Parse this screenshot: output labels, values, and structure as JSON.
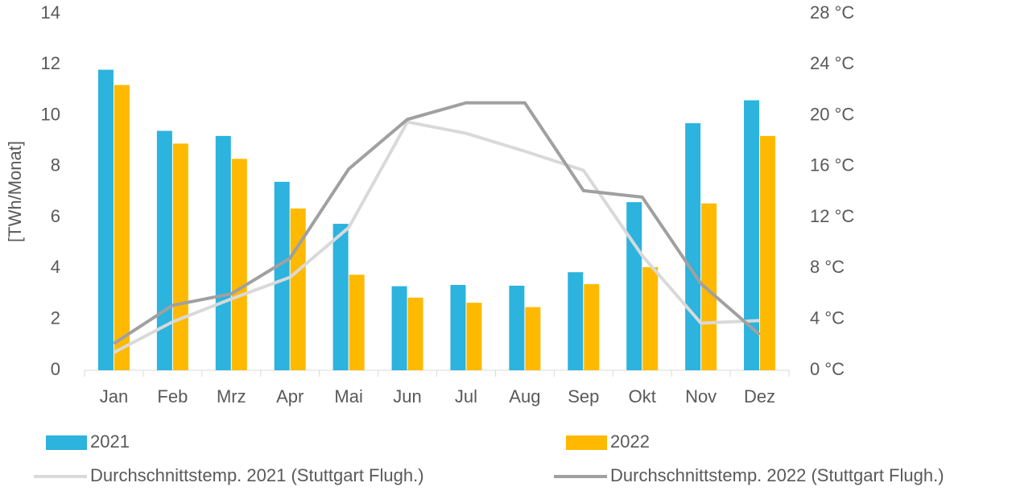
{
  "chart_data": {
    "type": "bar",
    "y_label": "[TWh/Monat]",
    "categories": [
      "Jan",
      "Feb",
      "Mrz",
      "Apr",
      "Mai",
      "Jun",
      "Jul",
      "Aug",
      "Sep",
      "Okt",
      "Nov",
      "Dez"
    ],
    "series": [
      {
        "name": "2021",
        "type": "bar",
        "color": "#2cb3de",
        "values": [
          11.8,
          9.4,
          9.2,
          7.4,
          5.75,
          3.3,
          3.35,
          3.32,
          3.85,
          6.6,
          9.7,
          10.6
        ]
      },
      {
        "name": "2022",
        "type": "bar",
        "color": "#ffb900",
        "values": [
          11.2,
          8.9,
          8.3,
          6.35,
          3.75,
          2.85,
          2.65,
          2.48,
          3.38,
          4.05,
          6.55,
          9.2
        ]
      },
      {
        "name": "Durchschnittstemp. 2021 (Stuttgart Flugh.)",
        "type": "line",
        "axis": "y2",
        "color": "#d9d9d9",
        "values": [
          1.4,
          3.8,
          5.6,
          7.3,
          11.2,
          19.5,
          18.6,
          17.2,
          15.7,
          9.0,
          3.7,
          3.9
        ]
      },
      {
        "name": "Durchschnittstemp. 2022 (Stuttgart Flugh.)",
        "type": "line",
        "axis": "y2",
        "color": "#a0a0a0",
        "values": [
          2.1,
          5.1,
          6.0,
          8.8,
          15.8,
          19.7,
          21.0,
          21.0,
          14.1,
          13.6,
          6.8,
          2.8
        ]
      }
    ],
    "ylim": [
      0,
      14
    ],
    "yticks": [
      0,
      2,
      4,
      6,
      8,
      10,
      12,
      14
    ],
    "y2lim": [
      0,
      28
    ],
    "y2ticks": [
      {
        "value": 0,
        "label": "0 °C"
      },
      {
        "value": 4,
        "label": "4 °C"
      },
      {
        "value": 8,
        "label": "8 °C"
      },
      {
        "value": 12,
        "label": "12 °C"
      },
      {
        "value": 16,
        "label": "16 °C"
      },
      {
        "value": 20,
        "label": "20 °C"
      },
      {
        "value": 24,
        "label": "24 °C"
      },
      {
        "value": 28,
        "label": "28 °C"
      }
    ],
    "grid": false,
    "legend": "bottom"
  }
}
